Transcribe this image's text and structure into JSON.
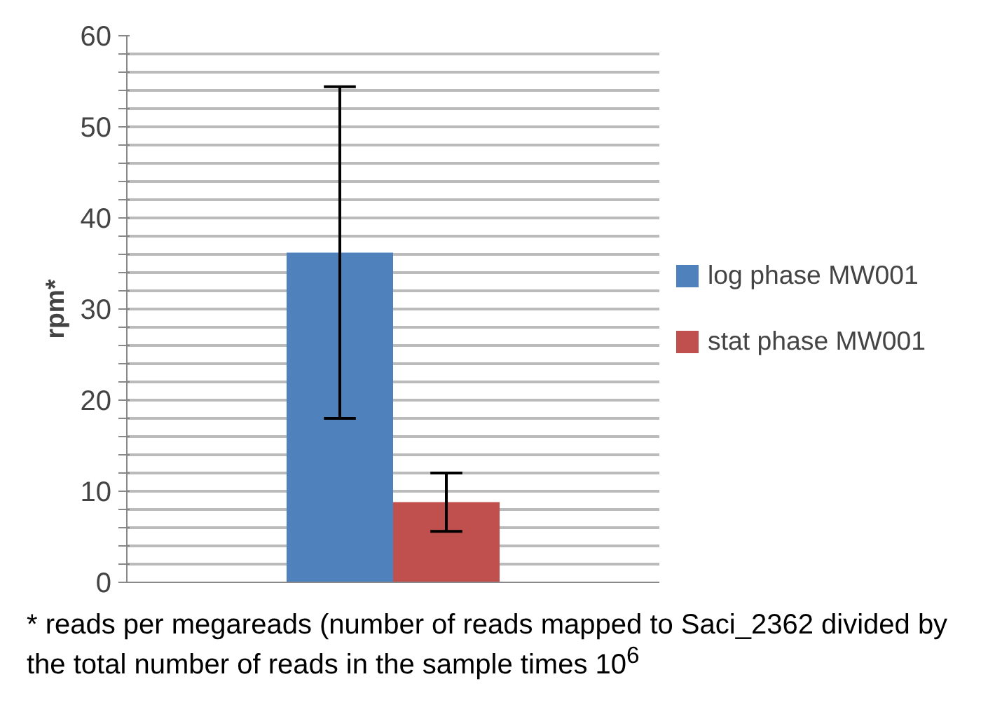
{
  "chart_data": {
    "type": "bar",
    "ylabel": "rpm*",
    "categories": [
      null
    ],
    "series": [
      {
        "name": "log phase MW001",
        "color": "#4f81bd",
        "values": [
          36.2
        ],
        "errors": [
          18.2
        ]
      },
      {
        "name": "stat phase MW001",
        "color": "#c0504d",
        "values": [
          8.8
        ],
        "errors": [
          3.2
        ]
      }
    ],
    "ylim": [
      0,
      60
    ],
    "yticks": [
      0,
      {
        "value": 2,
        "label": null
      },
      {
        "value": 4,
        "label": null
      },
      {
        "value": 6,
        "label": null
      },
      {
        "value": 8,
        "label": null
      },
      10,
      {
        "value": 12,
        "label": null
      },
      {
        "value": 14,
        "label": null
      },
      {
        "value": 16,
        "label": null
      },
      {
        "value": 18,
        "label": null
      },
      20,
      {
        "value": 22,
        "label": null
      },
      {
        "value": 24,
        "label": null
      },
      {
        "value": 26,
        "label": null
      },
      {
        "value": 28,
        "label": null
      },
      30,
      {
        "value": 32,
        "label": null
      },
      {
        "value": 34,
        "label": null
      },
      {
        "value": 36,
        "label": null
      },
      {
        "value": 38,
        "label": null
      },
      40,
      {
        "value": 42,
        "label": null
      },
      {
        "value": 44,
        "label": null
      },
      {
        "value": 46,
        "label": null
      },
      {
        "value": 48,
        "label": null
      },
      50,
      {
        "value": 52,
        "label": null
      },
      {
        "value": 54,
        "label": null
      },
      {
        "value": 56,
        "label": null
      },
      {
        "value": 58,
        "label": null
      },
      60
    ],
    "grid": "y",
    "legend": "right",
    "annotations": [
      "* reads per megareads (number of reads mapped to Saci_2362 divided by the total number of reads in the sample times 10$^{6}$"
    ]
  }
}
